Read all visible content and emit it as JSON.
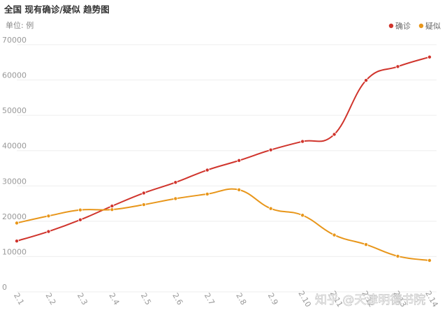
{
  "chart_data": {
    "type": "line",
    "title": "全国 现有确诊/疑似 趋势图",
    "unit_label": "单位: 例",
    "categories": [
      "2.1",
      "2.2",
      "2.3",
      "2.4",
      "2.5",
      "2.6",
      "2.7",
      "2.8",
      "2.9",
      "2.10",
      "2.11",
      "2.12",
      "2.13",
      "2.14"
    ],
    "series": [
      {
        "name": "确诊",
        "color": "#d0342c",
        "values": [
          14400,
          17100,
          20400,
          24300,
          28000,
          31000,
          34500,
          37200,
          40200,
          42600,
          44600,
          59900,
          63800,
          66500
        ]
      },
      {
        "name": "疑似",
        "color": "#e8961a",
        "values": [
          19500,
          21500,
          23200,
          23300,
          24700,
          26400,
          27700,
          28900,
          23600,
          21700,
          16100,
          13400,
          10100,
          8900
        ]
      }
    ],
    "y_ticks": [
      "0",
      "10000",
      "20000",
      "30000",
      "40000",
      "50000",
      "60000",
      "70000"
    ],
    "ylim": [
      0,
      70000
    ],
    "grid": true,
    "legend_position": "top-right"
  },
  "watermark": "知乎 @天津明德书院"
}
